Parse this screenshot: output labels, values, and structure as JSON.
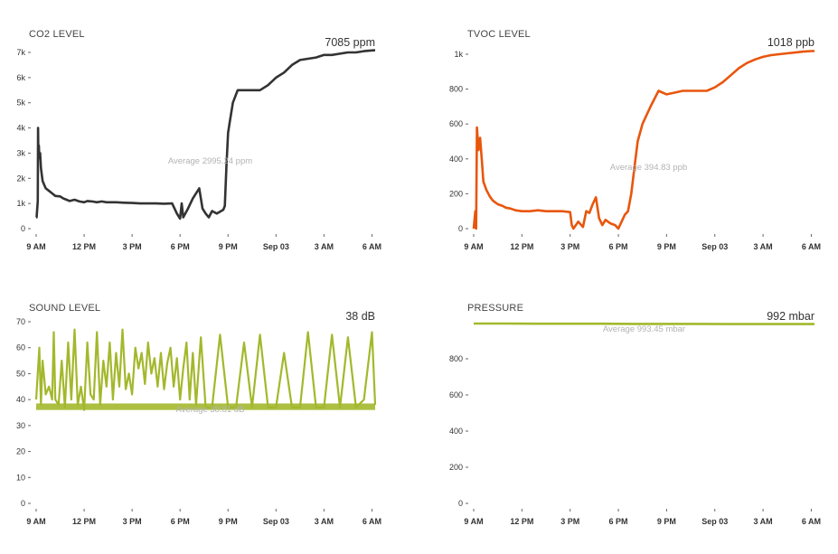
{
  "time_ticks": [
    "9 AM",
    "12 PM",
    "3 PM",
    "6 PM",
    "9 PM",
    "Sep 03",
    "3 AM",
    "6 AM"
  ],
  "colors": {
    "co2": "#333333",
    "tvoc": "#e8560c",
    "sound": "#a3b82c",
    "pressure": "#a3b82c"
  },
  "chart_data": [
    {
      "id": "co2",
      "type": "line",
      "title": "CO2 LEVEL",
      "current": "7085 ppm",
      "average_label": "Average 2995.24 ppm",
      "ylim": [
        0,
        7000
      ],
      "yticks": [
        0,
        1000,
        2000,
        3000,
        4000,
        5000,
        6000,
        7000
      ],
      "ytick_labels": [
        "0",
        "1k",
        "2k",
        "3k",
        "4k",
        "5k",
        "6k",
        "7k"
      ],
      "x": [
        0,
        0.03,
        0.1,
        0.12,
        0.14,
        0.17,
        0.2,
        0.25,
        0.3,
        0.4,
        0.5,
        0.6,
        0.8,
        1.0,
        1.2,
        1.5,
        1.7,
        1.9,
        2.1,
        2.4,
        2.7,
        3.0,
        3.2,
        3.5,
        3.8,
        4.1,
        4.4,
        5.0,
        5.5,
        6.0,
        6.5,
        7.0,
        7.5,
        8.0,
        8.5,
        8.8,
        9.0,
        9.1,
        9.2,
        9.5,
        9.8,
        10.2,
        10.4,
        10.6,
        10.8,
        11.0,
        11.3,
        11.7,
        11.8,
        11.9,
        12.0,
        12.1,
        12.3,
        12.6,
        13.0,
        13.5,
        14.0,
        14.5,
        15.0,
        15.5,
        16.0,
        16.5,
        17.0,
        17.5,
        18.0,
        18.5,
        19.0,
        19.5,
        20.0,
        20.5,
        21.0,
        21.2
      ],
      "y": [
        450,
        450,
        1100,
        4000,
        2800,
        3300,
        2800,
        3000,
        2400,
        1900,
        1750,
        1600,
        1500,
        1400,
        1300,
        1280,
        1200,
        1150,
        1100,
        1150,
        1080,
        1050,
        1100,
        1080,
        1050,
        1080,
        1050,
        1050,
        1030,
        1020,
        1000,
        1000,
        1000,
        990,
        1000,
        600,
        400,
        1000,
        450,
        800,
        1200,
        1600,
        800,
        600,
        450,
        700,
        600,
        750,
        900,
        2500,
        3800,
        4200,
        5000,
        5500,
        5500,
        5500,
        5500,
        5700,
        6000,
        6200,
        6500,
        6700,
        6750,
        6800,
        6900,
        6900,
        6950,
        7000,
        7000,
        7050,
        7080,
        7085
      ],
      "line_color": "#333333"
    },
    {
      "id": "tvoc",
      "type": "line",
      "title": "TVOC LEVEL",
      "current": "1018 ppb",
      "average_label": "Average 394.83 ppb",
      "ylim": [
        0,
        1000
      ],
      "yticks": [
        0,
        200,
        400,
        600,
        800,
        1000
      ],
      "ytick_labels": [
        "0",
        "200",
        "400",
        "600",
        "800",
        "1k"
      ],
      "x": [
        0,
        0.1,
        0.15,
        0.2,
        0.3,
        0.4,
        0.5,
        0.6,
        0.8,
        1.0,
        1.2,
        1.5,
        1.8,
        2.0,
        2.3,
        2.6,
        3.0,
        3.5,
        4.0,
        4.5,
        5.0,
        5.5,
        6.0,
        6.1,
        6.2,
        6.5,
        6.8,
        7.0,
        7.2,
        7.4,
        7.6,
        7.8,
        8.0,
        8.2,
        8.5,
        8.8,
        9.0,
        9.2,
        9.4,
        9.6,
        9.8,
        10.0,
        10.2,
        10.5,
        11.0,
        11.5,
        12.0,
        12.5,
        13.0,
        13.5,
        14.0,
        14.5,
        15.0,
        15.5,
        16.0,
        16.5,
        17.0,
        17.5,
        18.0,
        18.5,
        19.0,
        19.5,
        20.0,
        20.5,
        21.0,
        21.2
      ],
      "y": [
        0,
        100,
        0,
        580,
        450,
        520,
        400,
        270,
        220,
        185,
        160,
        140,
        130,
        120,
        115,
        105,
        100,
        100,
        105,
        100,
        100,
        100,
        95,
        20,
        0,
        40,
        10,
        100,
        90,
        140,
        180,
        60,
        20,
        50,
        30,
        20,
        0,
        40,
        80,
        100,
        200,
        350,
        500,
        600,
        700,
        790,
        770,
        780,
        790,
        790,
        790,
        790,
        810,
        840,
        880,
        920,
        950,
        970,
        985,
        995,
        1000,
        1005,
        1010,
        1015,
        1018,
        1018
      ],
      "line_color": "#e8560c"
    },
    {
      "id": "sound",
      "type": "line",
      "title": "SOUND LEVEL",
      "current": "38 dB",
      "average_label": "Average 38.81 dB",
      "ylim": [
        0,
        70
      ],
      "yticks": [
        0,
        10,
        20,
        30,
        40,
        50,
        60,
        70
      ],
      "ytick_labels": [
        "0",
        "10",
        "20",
        "30",
        "40",
        "50",
        "60",
        "70"
      ],
      "x": [
        0,
        0.2,
        0.3,
        0.4,
        0.6,
        0.8,
        1.0,
        1.1,
        1.2,
        1.4,
        1.6,
        1.8,
        2.0,
        2.2,
        2.4,
        2.6,
        2.8,
        3.0,
        3.2,
        3.4,
        3.6,
        3.8,
        4.0,
        4.2,
        4.4,
        4.6,
        4.8,
        5.0,
        5.2,
        5.4,
        5.6,
        5.8,
        6.0,
        6.2,
        6.4,
        6.6,
        6.8,
        7.0,
        7.2,
        7.4,
        7.6,
        7.8,
        8.0,
        8.2,
        8.4,
        8.6,
        8.8,
        9.0,
        9.2,
        9.4,
        9.6,
        9.8,
        10.0,
        10.3,
        10.6,
        11.0,
        11.5,
        12.0,
        12.5,
        13.0,
        13.5,
        14.0,
        14.5,
        15.0,
        15.5,
        16.0,
        16.5,
        17.0,
        17.5,
        18.0,
        18.5,
        19.0,
        19.5,
        20.0,
        20.5,
        21.0,
        21.2
      ],
      "y": [
        40,
        60,
        38,
        55,
        42,
        45,
        40,
        66,
        40,
        38,
        55,
        37,
        62,
        40,
        67,
        38,
        45,
        36,
        62,
        42,
        40,
        66,
        38,
        55,
        45,
        62,
        40,
        58,
        45,
        67,
        44,
        50,
        42,
        60,
        52,
        58,
        46,
        62,
        50,
        56,
        45,
        58,
        44,
        54,
        60,
        45,
        56,
        40,
        52,
        62,
        40,
        58,
        38,
        64,
        37,
        37,
        65,
        37,
        37,
        62,
        37,
        65,
        37,
        37,
        58,
        37,
        37,
        66,
        37,
        37,
        65,
        37,
        64,
        37,
        40,
        66,
        38
      ],
      "line_color": "#a3b82c"
    },
    {
      "id": "pressure",
      "type": "line",
      "title": "PRESSURE",
      "current": "992 mbar",
      "average_label": "Average 993.45 mbar",
      "ylim": [
        0,
        1000
      ],
      "yticks": [
        0,
        200,
        400,
        600,
        800
      ],
      "ytick_labels": [
        "0",
        "200",
        "400",
        "600",
        "800"
      ],
      "x": [
        0,
        2,
        4,
        6,
        8,
        10,
        12,
        14,
        16,
        18,
        20,
        21.2
      ],
      "y": [
        995,
        995,
        994,
        994,
        994,
        993,
        993,
        993,
        992,
        992,
        992,
        992
      ],
      "line_color": "#a3b82c"
    }
  ]
}
